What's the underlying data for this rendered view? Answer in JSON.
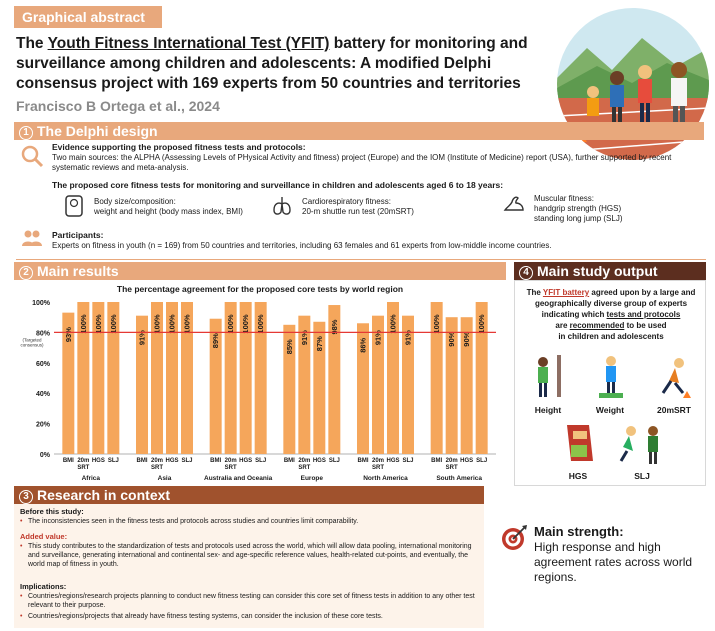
{
  "header": {
    "badge": "Graphical abstract",
    "title_pre": "The ",
    "title_underlined": "Youth Fitness International Test (YFIT)",
    "title_post": " battery for monitoring and surveillance among children and adolescents: A modified Delphi consensus project with 169 experts from 50 countries and territories",
    "authors": "Francisco B Ortega et al., 2024"
  },
  "sections": {
    "s1": {
      "num": "1",
      "label": "The Delphi design"
    },
    "s2": {
      "num": "2",
      "label": "Main results"
    },
    "s3": {
      "num": "3",
      "label": "Research in context"
    },
    "s4": {
      "num": "4",
      "label": "Main study output"
    }
  },
  "delphi": {
    "evidence_title": "Evidence supporting the proposed fitness tests and protocols:",
    "evidence_body": "Two main sources: the ALPHA (Assessing Levels of PHysical Activity and fitness) project (Europe) and the IOM (Institute of Medicine) report (USA), further supported by recent systematic reviews and meta-analysis.",
    "core_title": "The proposed core fitness tests for monitoring and surveillance in children and adolescents aged 6 to 18 years:",
    "body_comp_1": "Body size/composition:",
    "body_comp_2": "weight and height (body mass index, BMI)",
    "cardio_1": "Cardiorespiratory fitness:",
    "cardio_2": "20-m shuttle run test (20mSRT)",
    "muscular_1": "Muscular fitness:",
    "muscular_2": "handgrip strength (HGS)",
    "muscular_3": "standing long jump (SLJ)",
    "participants_title": "Participants:",
    "participants_body": "Experts on fitness in youth (n = 169) from 50 countries and territories, including 63 females and 61 experts from low-middle income countries."
  },
  "chart_data": {
    "type": "bar",
    "title": "The percentage agreement for the proposed core tests by world region",
    "ylim": [
      0,
      100
    ],
    "yticks": [
      "0%",
      "20%",
      "40%",
      "60%",
      "80%",
      "100%"
    ],
    "threshold": 80,
    "threshold_label": "(Targeted consensus)",
    "categories": [
      "BMI",
      "20m SRT",
      "HGS",
      "SLJ"
    ],
    "groups": [
      {
        "name": "Africa",
        "values": [
          93,
          100,
          100,
          100
        ]
      },
      {
        "name": "Asia",
        "values": [
          91,
          100,
          100,
          100
        ]
      },
      {
        "name": "Australia and Oceania",
        "values": [
          89,
          100,
          100,
          100
        ]
      },
      {
        "name": "Europe",
        "values": [
          85,
          91,
          87,
          98
        ]
      },
      {
        "name": "North America",
        "values": [
          86,
          91,
          100,
          91
        ]
      },
      {
        "name": "South America",
        "values": [
          100,
          90,
          90,
          100
        ]
      }
    ],
    "bar_color": "#f5a65b",
    "threshold_color": "#e53935"
  },
  "output": {
    "line1_pre": "The ",
    "line1_red": "YFIT battery",
    "line1_post": " agreed upon by a large and",
    "line2": "geographically diverse group of experts",
    "line3_pre": "indicating which ",
    "line3_u": "tests and protocols",
    "line4_pre": "are ",
    "line4_u": "recommended",
    "line4_post": " to be used",
    "line5": "in children and adolescents",
    "fig_labels": [
      "Height",
      "Weight",
      "20mSRT",
      "HGS",
      "SLJ"
    ]
  },
  "context": {
    "before_title": "Before this study:",
    "before_body": "The inconsistencies seen in the fitness tests and protocols across studies and countries limit comparability.",
    "added_title": "Added value:",
    "added_body": "This study contributes to the standardization of tests and protocols used across the world, which will allow data pooling, international monitoring and surveillance, generating international and continental sex- and age-specific reference values, health-related cut-points, and eventually, the world map of fitness in youth.",
    "impl_title": "Implications:",
    "impl_1": "Countries/regions/research projects planning to conduct new fitness testing can consider this core set of fitness tests in addition to any other test relevant to their purpose.",
    "impl_2": "Countries/regions/projects that already have fitness testing systems, can consider the inclusion of these core tests."
  },
  "strength": {
    "title": "Main strength:",
    "body": "High response and high agreement rates across world regions."
  },
  "colors": {
    "accent": "#e8a87c",
    "dark_brown": "#5c2e1f",
    "brown": "#a0522d",
    "red": "#c0392b"
  }
}
